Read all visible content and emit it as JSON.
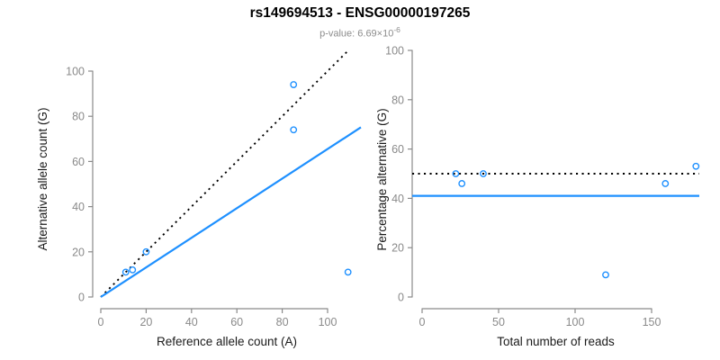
{
  "header": {
    "title": "rs149694513 - ENSG00000197265",
    "p_label": "p-value: 6.69×10",
    "p_exponent": "-6"
  },
  "colors": {
    "point_blue": "#1E90FF",
    "fit_line_blue": "#1E90FF",
    "reference_line_black": "#000000",
    "axis_gray": "#8a8a8a",
    "tick_label_gray": "#8a8a8a",
    "axis_title_black": "#1a1a1a",
    "subtitle_gray": "#8c8c8c",
    "background": "#ffffff"
  },
  "chart_data": [
    {
      "id": "allele-counts-scatter",
      "type": "scatter",
      "xlabel": "Reference allele count (A)",
      "ylabel": "Alternative allele count (G)",
      "xlim": [
        0,
        115
      ],
      "ylim": [
        0,
        110
      ],
      "xticks": [
        0,
        20,
        40,
        60,
        80,
        100
      ],
      "yticks": [
        0,
        20,
        40,
        60,
        80,
        100
      ],
      "grid": false,
      "legend": false,
      "points": [
        [
          11,
          11
        ],
        [
          14,
          12
        ],
        [
          20,
          20
        ],
        [
          85,
          94
        ],
        [
          85,
          74
        ],
        [
          109,
          11
        ]
      ],
      "lines": [
        {
          "name": "identity-line",
          "type": "ab",
          "intercept": 0,
          "slope": 1,
          "style": "dotted",
          "color": "#000000"
        },
        {
          "name": "fit-line",
          "type": "ab",
          "intercept": 0,
          "slope": 0.655,
          "style": "solid",
          "color": "#1E90FF"
        }
      ]
    },
    {
      "id": "percentage-alternative-scatter",
      "type": "scatter",
      "xlabel": "Total number of reads",
      "ylabel": "Percentage alternative (G)",
      "xlim": [
        0,
        183
      ],
      "ylim": [
        0,
        100
      ],
      "xticks": [
        0,
        50,
        100,
        150
      ],
      "yticks": [
        0,
        20,
        40,
        60,
        80,
        100
      ],
      "grid": false,
      "legend": false,
      "points": [
        [
          22,
          50
        ],
        [
          26,
          46
        ],
        [
          40,
          50
        ],
        [
          120,
          9
        ],
        [
          159,
          46
        ],
        [
          179,
          53
        ]
      ],
      "lines": [
        {
          "name": "expected-50pct-line",
          "type": "h",
          "value": 50,
          "style": "dotted",
          "color": "#000000"
        },
        {
          "name": "fit-line",
          "type": "h",
          "value": 41,
          "style": "solid",
          "color": "#1E90FF"
        }
      ]
    }
  ]
}
